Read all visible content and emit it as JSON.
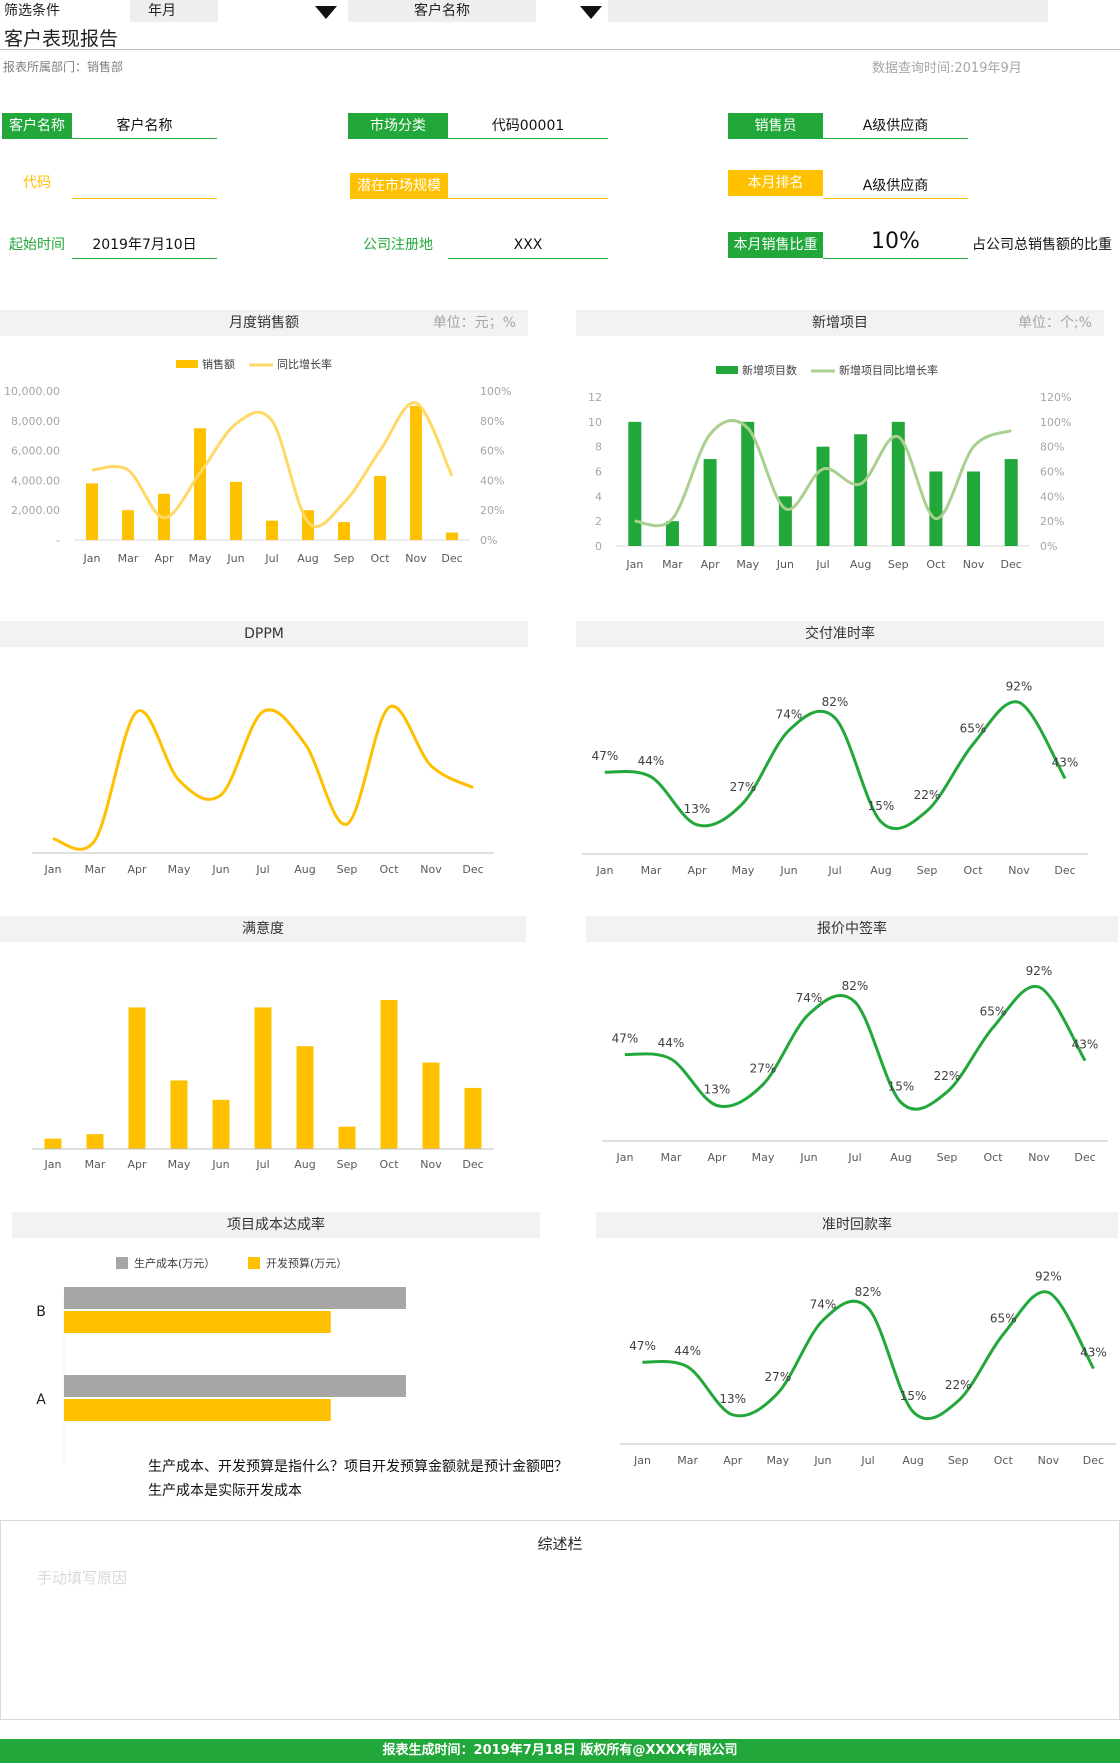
{
  "filter": {
    "label": "筛选条件",
    "period_value": "年月",
    "customer_label": "客户名称",
    "customer_value": ""
  },
  "page": {
    "title": "客户表现报告",
    "department": "报表所属部门：销售部",
    "query_time": "数据查询时间:2019年9月"
  },
  "info": {
    "customer_name_label": "客户名称",
    "customer_name_value": "客户名称",
    "market_category_label": "市场分类",
    "market_category_value": "代码00001",
    "salesperson_label": "销售员",
    "salesperson_value": "A级供应商",
    "code_label": "代码",
    "code_value": "",
    "market_size_label": "潜在市场规模",
    "market_size_value": "",
    "monthly_rank_label": "本月排名",
    "monthly_rank_value": "A级供应商",
    "start_time_label": "起始时间",
    "start_time_value": "2019年7月10日",
    "registration_label": "公司注册地",
    "registration_value": "XXX",
    "sales_ratio_label": "本月销售比重",
    "sales_ratio_value": "10%",
    "sales_ratio_note": "占公司总销售额的比重"
  },
  "colors": {
    "green": "#22a73a",
    "yellow": "#ffc000",
    "light_yellow": "#ffd966",
    "light_green": "#a9d08e",
    "gray": "#a6a6a6"
  },
  "chart_data": [
    {
      "id": "monthly_sales",
      "type": "bar",
      "title": "月度销售额",
      "unit": "单位：元；%",
      "categories": [
        "Jan",
        "Mar",
        "Apr",
        "May",
        "Jun",
        "Jul",
        "Aug",
        "Sep",
        "Oct",
        "Nov",
        "Dec"
      ],
      "series": [
        {
          "name": "销售额",
          "type": "bar",
          "values": [
            3800,
            2000,
            3100,
            7500,
            3900,
            1300,
            2000,
            1200,
            4300,
            9000,
            500
          ]
        },
        {
          "name": "同比增长率",
          "type": "line",
          "axis": "right",
          "values": [
            0.47,
            0.47,
            0.15,
            0.45,
            0.78,
            0.8,
            0.12,
            0.25,
            0.6,
            0.92,
            0.43
          ]
        }
      ],
      "y_ticks": [
        "10,000.00",
        "8,000.00",
        "6,000.00",
        "4,000.00",
        "2,000.00",
        "-"
      ],
      "y2_ticks": [
        "100%",
        "80%",
        "60%",
        "40%",
        "20%",
        "0%"
      ],
      "ylim": [
        0,
        10000
      ],
      "y2lim": [
        0,
        1
      ]
    },
    {
      "id": "new_projects",
      "type": "bar",
      "title": "新增项目",
      "unit": "单位：个;%",
      "categories": [
        "Jan",
        "Mar",
        "Apr",
        "May",
        "Jun",
        "Jul",
        "Aug",
        "Sep",
        "Oct",
        "Nov",
        "Dec"
      ],
      "series": [
        {
          "name": "新增项目数",
          "type": "bar",
          "values": [
            10,
            2,
            7,
            10,
            4,
            8,
            9,
            10,
            6,
            6,
            7
          ]
        },
        {
          "name": "新增项目同比增长率",
          "type": "line",
          "axis": "right",
          "values": [
            0.2,
            0.22,
            0.9,
            0.95,
            0.3,
            0.62,
            0.5,
            0.88,
            0.22,
            0.8,
            0.93
          ]
        }
      ],
      "y_ticks": [
        "12",
        "10",
        "8",
        "6",
        "4",
        "2",
        "0"
      ],
      "y2_ticks": [
        "120%",
        "100%",
        "80%",
        "60%",
        "40%",
        "20%",
        "0%"
      ],
      "ylim": [
        0,
        12
      ],
      "y2lim": [
        0,
        1.2
      ]
    },
    {
      "id": "dppm",
      "type": "line",
      "title": "DPPM",
      "categories": [
        "Jan",
        "Mar",
        "Apr",
        "May",
        "Jun",
        "Jul",
        "Aug",
        "Sep",
        "Oct",
        "Nov",
        "Dec"
      ],
      "values": [
        0.05,
        0.04,
        0.92,
        0.45,
        0.35,
        0.92,
        0.7,
        0.15,
        0.95,
        0.55,
        0.4
      ],
      "ylim": [
        0,
        1
      ]
    },
    {
      "id": "on_time_delivery",
      "type": "line",
      "title": "交付准时率",
      "categories": [
        "Jan",
        "Mar",
        "Apr",
        "May",
        "Jun",
        "Jul",
        "Aug",
        "Sep",
        "Oct",
        "Nov",
        "Dec"
      ],
      "values": [
        0.47,
        0.44,
        0.13,
        0.27,
        0.74,
        0.82,
        0.15,
        0.22,
        0.65,
        0.92,
        0.43
      ],
      "labels": [
        "47%",
        "44%",
        "13%",
        "27%",
        "74%",
        "82%",
        "15%",
        "22%",
        "65%",
        "92%",
        "43%"
      ],
      "ylim": [
        0,
        1
      ]
    },
    {
      "id": "satisfaction",
      "type": "bar",
      "title": "满意度",
      "categories": [
        "Jan",
        "Mar",
        "Apr",
        "May",
        "Jun",
        "Jul",
        "Aug",
        "Sep",
        "Oct",
        "Nov",
        "Dec"
      ],
      "values": [
        0.07,
        0.1,
        0.95,
        0.46,
        0.33,
        0.95,
        0.69,
        0.15,
        1.0,
        0.58,
        0.41
      ],
      "ylim": [
        0,
        1
      ]
    },
    {
      "id": "quote_win_rate",
      "type": "line",
      "title": "报价中签率",
      "categories": [
        "Jan",
        "Mar",
        "Apr",
        "May",
        "Jun",
        "Jul",
        "Aug",
        "Sep",
        "Oct",
        "Nov",
        "Dec"
      ],
      "values": [
        0.47,
        0.44,
        0.13,
        0.27,
        0.74,
        0.82,
        0.15,
        0.22,
        0.65,
        0.92,
        0.43
      ],
      "labels": [
        "47%",
        "44%",
        "13%",
        "27%",
        "74%",
        "82%",
        "15%",
        "22%",
        "65%",
        "92%",
        "43%"
      ],
      "ylim": [
        0,
        1
      ]
    },
    {
      "id": "project_cost",
      "type": "bar",
      "orientation": "horizontal",
      "title": "项目成本达成率",
      "categories": [
        "B",
        "A"
      ],
      "series": [
        {
          "name": "生产成本(万元）",
          "values": [
            1.0,
            1.0
          ]
        },
        {
          "name": "开发预算(万元）",
          "values": [
            0.78,
            0.78
          ]
        }
      ],
      "xlim": [
        0,
        1.0
      ]
    },
    {
      "id": "on_time_payment",
      "type": "line",
      "title": "准时回款率",
      "categories": [
        "Jan",
        "Mar",
        "Apr",
        "May",
        "Jun",
        "Jul",
        "Aug",
        "Sep",
        "Oct",
        "Nov",
        "Dec"
      ],
      "values": [
        0.47,
        0.44,
        0.13,
        0.27,
        0.74,
        0.82,
        0.15,
        0.22,
        0.65,
        0.92,
        0.43
      ],
      "labels": [
        "47%",
        "44%",
        "13%",
        "27%",
        "74%",
        "82%",
        "15%",
        "22%",
        "65%",
        "92%",
        "43%"
      ],
      "ylim": [
        0,
        1
      ]
    }
  ],
  "notes": {
    "question_line1": "生产成本、开发预算是指什么？项目开发预算金额就是预计金额吧？",
    "question_line2": "生产成本是实际开发成本"
  },
  "summary": {
    "title": "综述栏",
    "placeholder": "手动填写原因"
  },
  "footer": {
    "text": "报表生成时间：2019年7月18日    版权所有@XXXX有限公司"
  }
}
